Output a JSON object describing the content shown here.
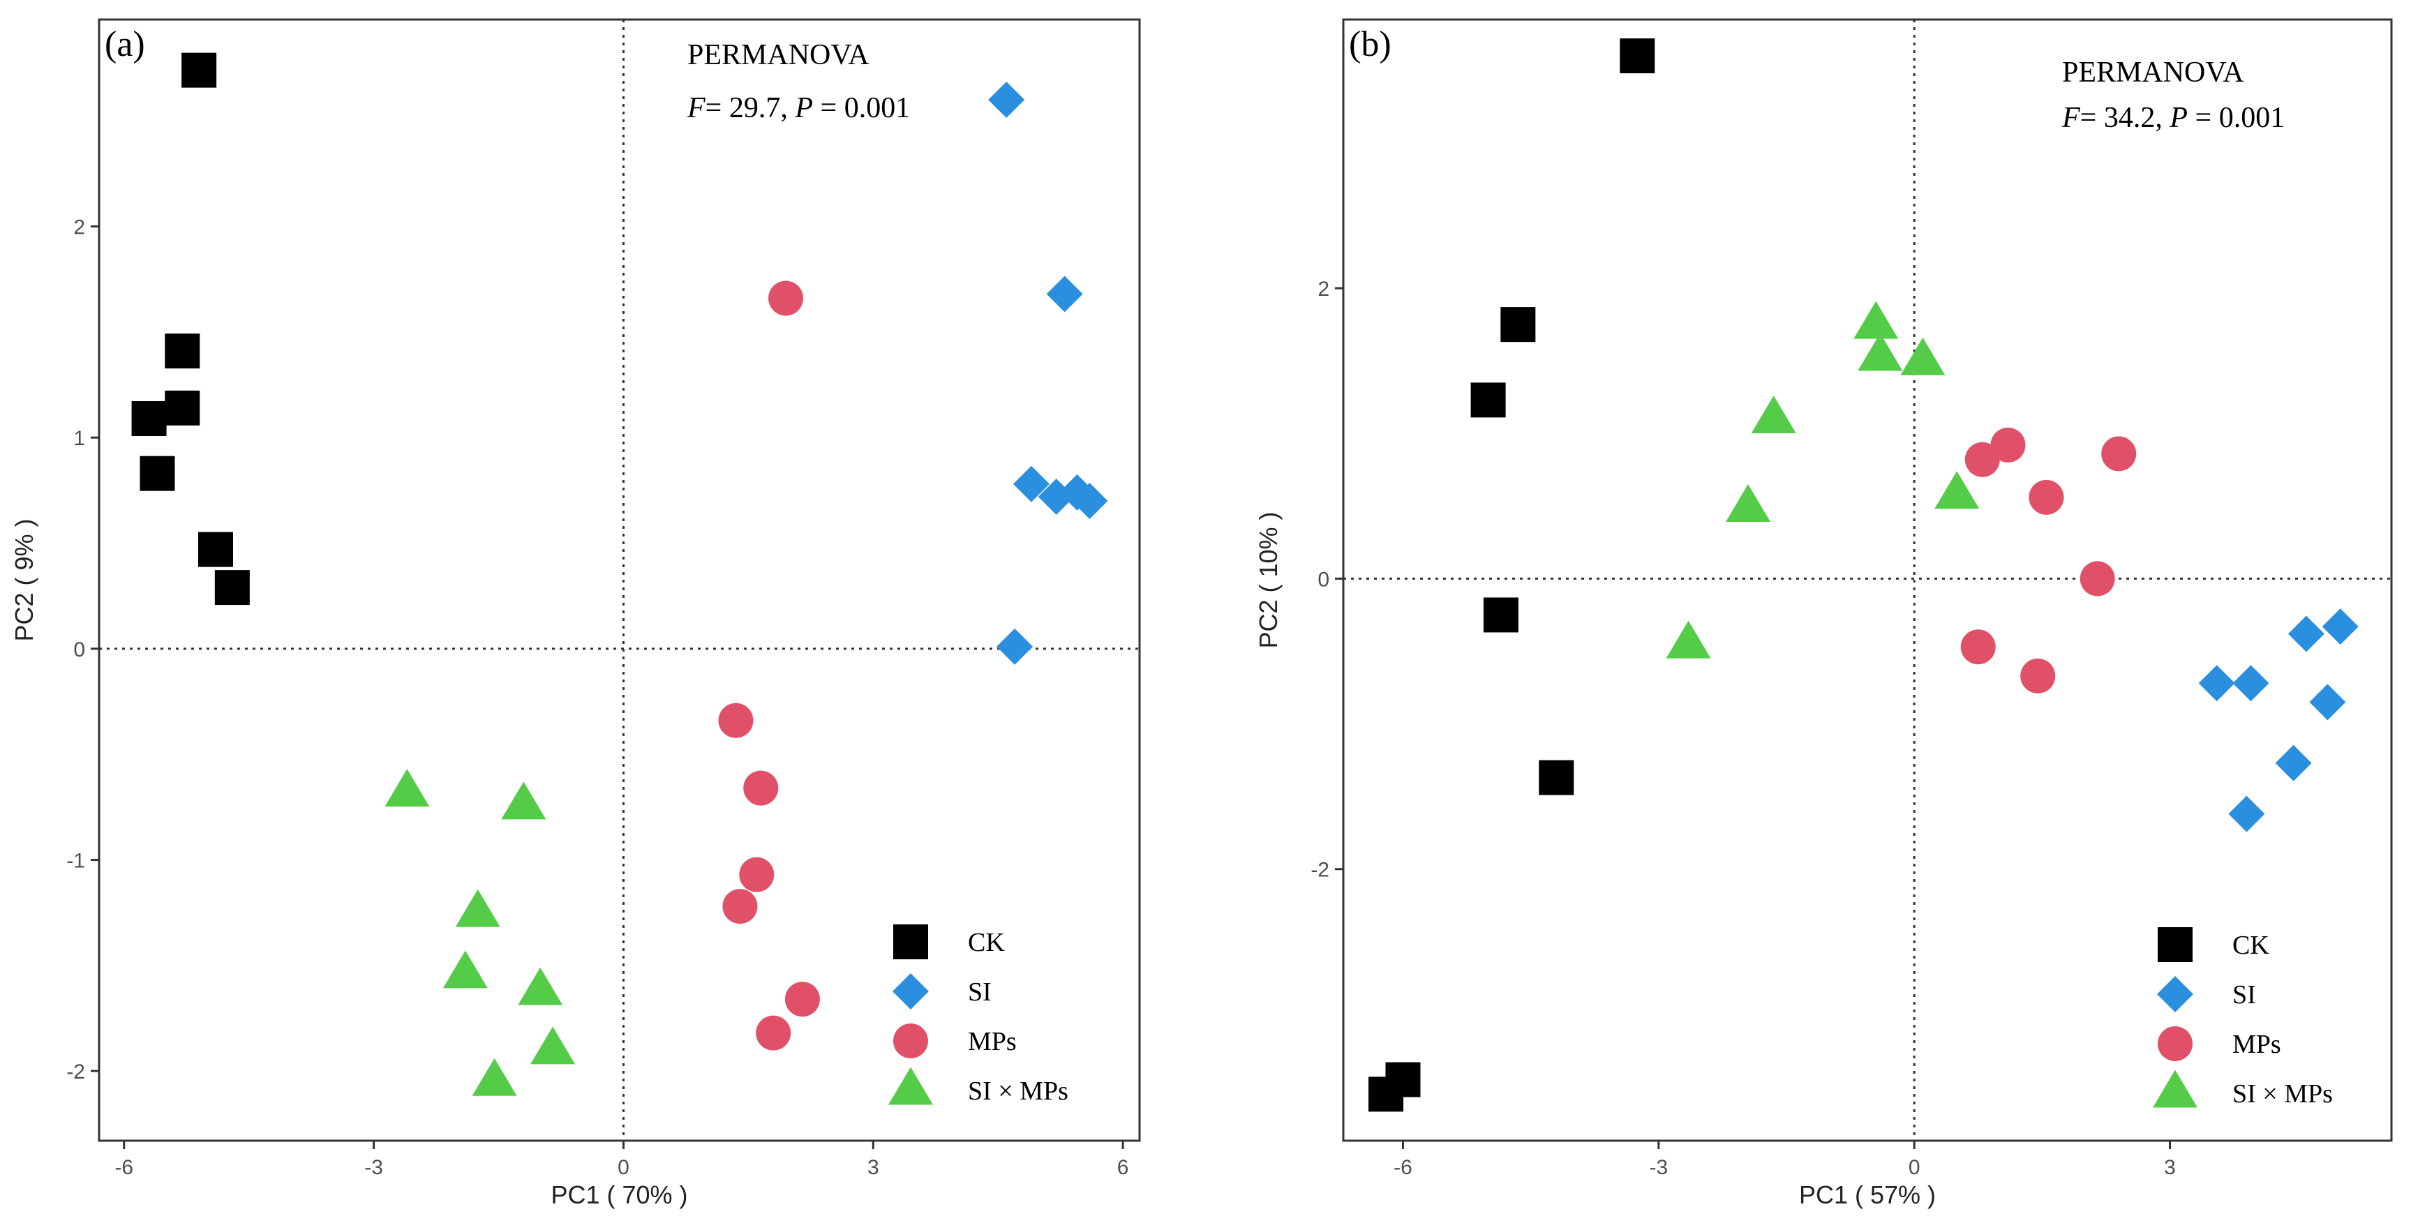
{
  "colors": {
    "CK": "#000000",
    "SI": "#2b8fdf",
    "MPs": "#e05068",
    "SI × MPs": "#55cc48"
  },
  "chart_data": [
    {
      "type": "scatter",
      "panel_label": "(a)",
      "xlabel": "PC1 ( 70% )",
      "ylabel": "PC2 ( 9% )",
      "xlim": [
        -6.3,
        6.2
      ],
      "ylim": [
        -2.33,
        2.98
      ],
      "xticks": [
        -6,
        -3,
        0,
        3,
        6
      ],
      "yticks": [
        -2,
        -1,
        0,
        1,
        2
      ],
      "grid": false,
      "reference_lines": {
        "x": 0,
        "y": 0
      },
      "annotation": {
        "title": "PERMANOVA",
        "F": "29.7",
        "P": "0.001"
      },
      "legend_position": "bottom-right",
      "series": [
        {
          "name": "CK",
          "marker": "square",
          "points": [
            [
              -5.1,
              2.74
            ],
            [
              -5.3,
              1.41
            ],
            [
              -5.3,
              1.14
            ],
            [
              -5.7,
              1.09
            ],
            [
              -5.6,
              0.83
            ],
            [
              -4.9,
              0.47
            ],
            [
              -4.7,
              0.29
            ]
          ]
        },
        {
          "name": "SI",
          "marker": "diamond",
          "points": [
            [
              4.6,
              2.6
            ],
            [
              5.3,
              1.68
            ],
            [
              4.9,
              0.78
            ],
            [
              5.2,
              0.72
            ],
            [
              5.45,
              0.74
            ],
            [
              5.6,
              0.7
            ],
            [
              4.7,
              0.01
            ]
          ]
        },
        {
          "name": "MPs",
          "marker": "circle",
          "points": [
            [
              1.95,
              1.66
            ],
            [
              1.35,
              -0.34
            ],
            [
              1.65,
              -0.66
            ],
            [
              1.6,
              -1.07
            ],
            [
              1.4,
              -1.22
            ],
            [
              2.15,
              -1.66
            ],
            [
              1.8,
              -1.82
            ]
          ]
        },
        {
          "name": "SI × MPs",
          "marker": "triangle",
          "points": [
            [
              -2.6,
              -0.68
            ],
            [
              -1.2,
              -0.74
            ],
            [
              -1.75,
              -1.25
            ],
            [
              -1.9,
              -1.54
            ],
            [
              -1.0,
              -1.62
            ],
            [
              -0.85,
              -1.9
            ],
            [
              -1.55,
              -2.05
            ]
          ]
        }
      ]
    },
    {
      "type": "scatter",
      "panel_label": "(b)",
      "xlabel": "PC1 ( 57% )",
      "ylabel": "PC2 ( 10% )",
      "xlim": [
        -6.7,
        5.6
      ],
      "ylim": [
        -3.87,
        3.85
      ],
      "xticks": [
        -6,
        -3,
        0,
        3
      ],
      "yticks": [
        -2,
        0,
        2
      ],
      "grid": false,
      "reference_lines": {
        "x": 0,
        "y": 0
      },
      "annotation": {
        "title": "PERMANOVA",
        "F": "34.2",
        "P": "0.001"
      },
      "legend_position": "bottom-right",
      "series": [
        {
          "name": "CK",
          "marker": "square",
          "points": [
            [
              -3.25,
              3.6
            ],
            [
              -4.65,
              1.75
            ],
            [
              -5.0,
              1.23
            ],
            [
              -4.85,
              -0.25
            ],
            [
              -4.2,
              -1.37
            ],
            [
              -6.2,
              -3.55
            ],
            [
              -6.0,
              -3.45
            ]
          ]
        },
        {
          "name": "SI",
          "marker": "diamond",
          "points": [
            [
              4.6,
              -0.38
            ],
            [
              5.0,
              -0.33
            ],
            [
              3.55,
              -0.72
            ],
            [
              3.95,
              -0.72
            ],
            [
              4.85,
              -0.85
            ],
            [
              4.45,
              -1.27
            ],
            [
              3.9,
              -1.62
            ]
          ]
        },
        {
          "name": "MPs",
          "marker": "circle",
          "points": [
            [
              0.8,
              0.82
            ],
            [
              1.1,
              0.92
            ],
            [
              2.4,
              0.86
            ],
            [
              1.55,
              0.56
            ],
            [
              2.15,
              0.0
            ],
            [
              0.75,
              -0.47
            ],
            [
              1.45,
              -0.67
            ]
          ]
        },
        {
          "name": "SI × MPs",
          "marker": "triangle",
          "points": [
            [
              -0.45,
              1.75
            ],
            [
              -0.4,
              1.53
            ],
            [
              0.1,
              1.5
            ],
            [
              -1.65,
              1.1
            ],
            [
              0.5,
              0.58
            ],
            [
              -1.95,
              0.49
            ],
            [
              -2.65,
              -0.45
            ]
          ]
        }
      ]
    }
  ]
}
